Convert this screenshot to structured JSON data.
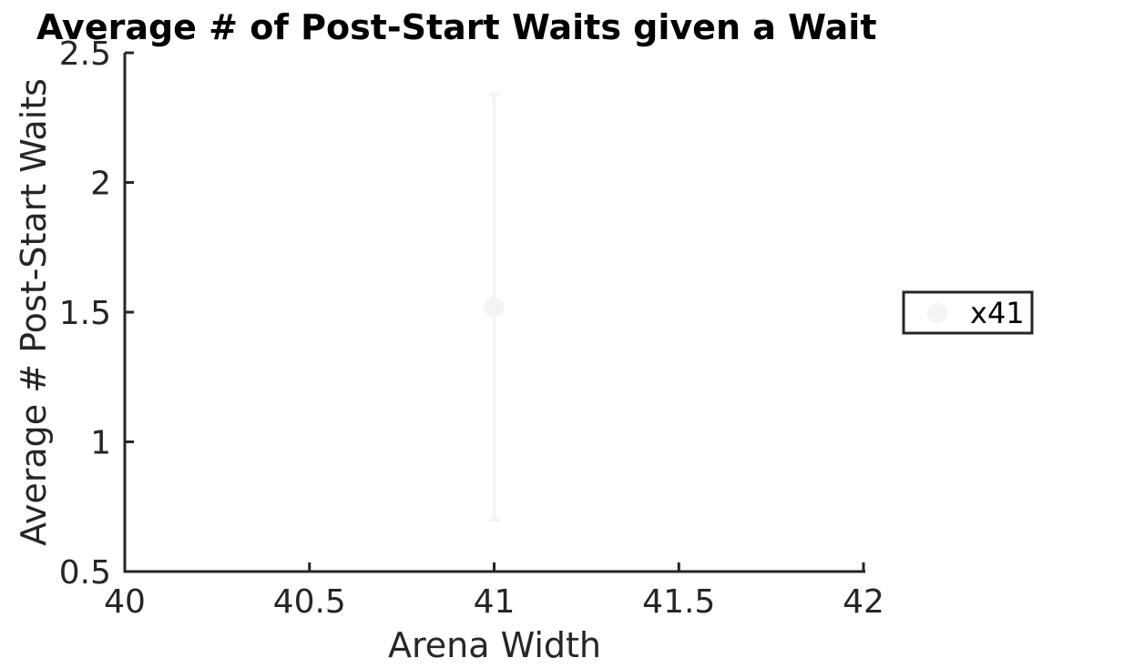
{
  "chart_data": {
    "type": "scatter",
    "title": "Average # of Post-Start Waits given a Wait",
    "xlabel": "Arena Width",
    "ylabel": "Average # Post-Start Waits",
    "xlim": [
      40,
      42
    ],
    "ylim": [
      0.5,
      2.5
    ],
    "xticks": [
      40,
      40.5,
      41,
      41.5,
      42
    ],
    "xtick_labels": [
      "40",
      "40.5",
      "41",
      "41.5",
      "42"
    ],
    "yticks": [
      0.5,
      1,
      1.5,
      2,
      2.5
    ],
    "ytick_labels": [
      "0.5",
      "1",
      "1.5",
      "2",
      "2.5"
    ],
    "grid": false,
    "legend_position": "right",
    "series": [
      {
        "name": "x41",
        "color": "#f4f4f4",
        "points": [
          {
            "x": 41,
            "y": 1.52,
            "err_low": 0.7,
            "err_high": 2.34
          }
        ]
      }
    ]
  }
}
